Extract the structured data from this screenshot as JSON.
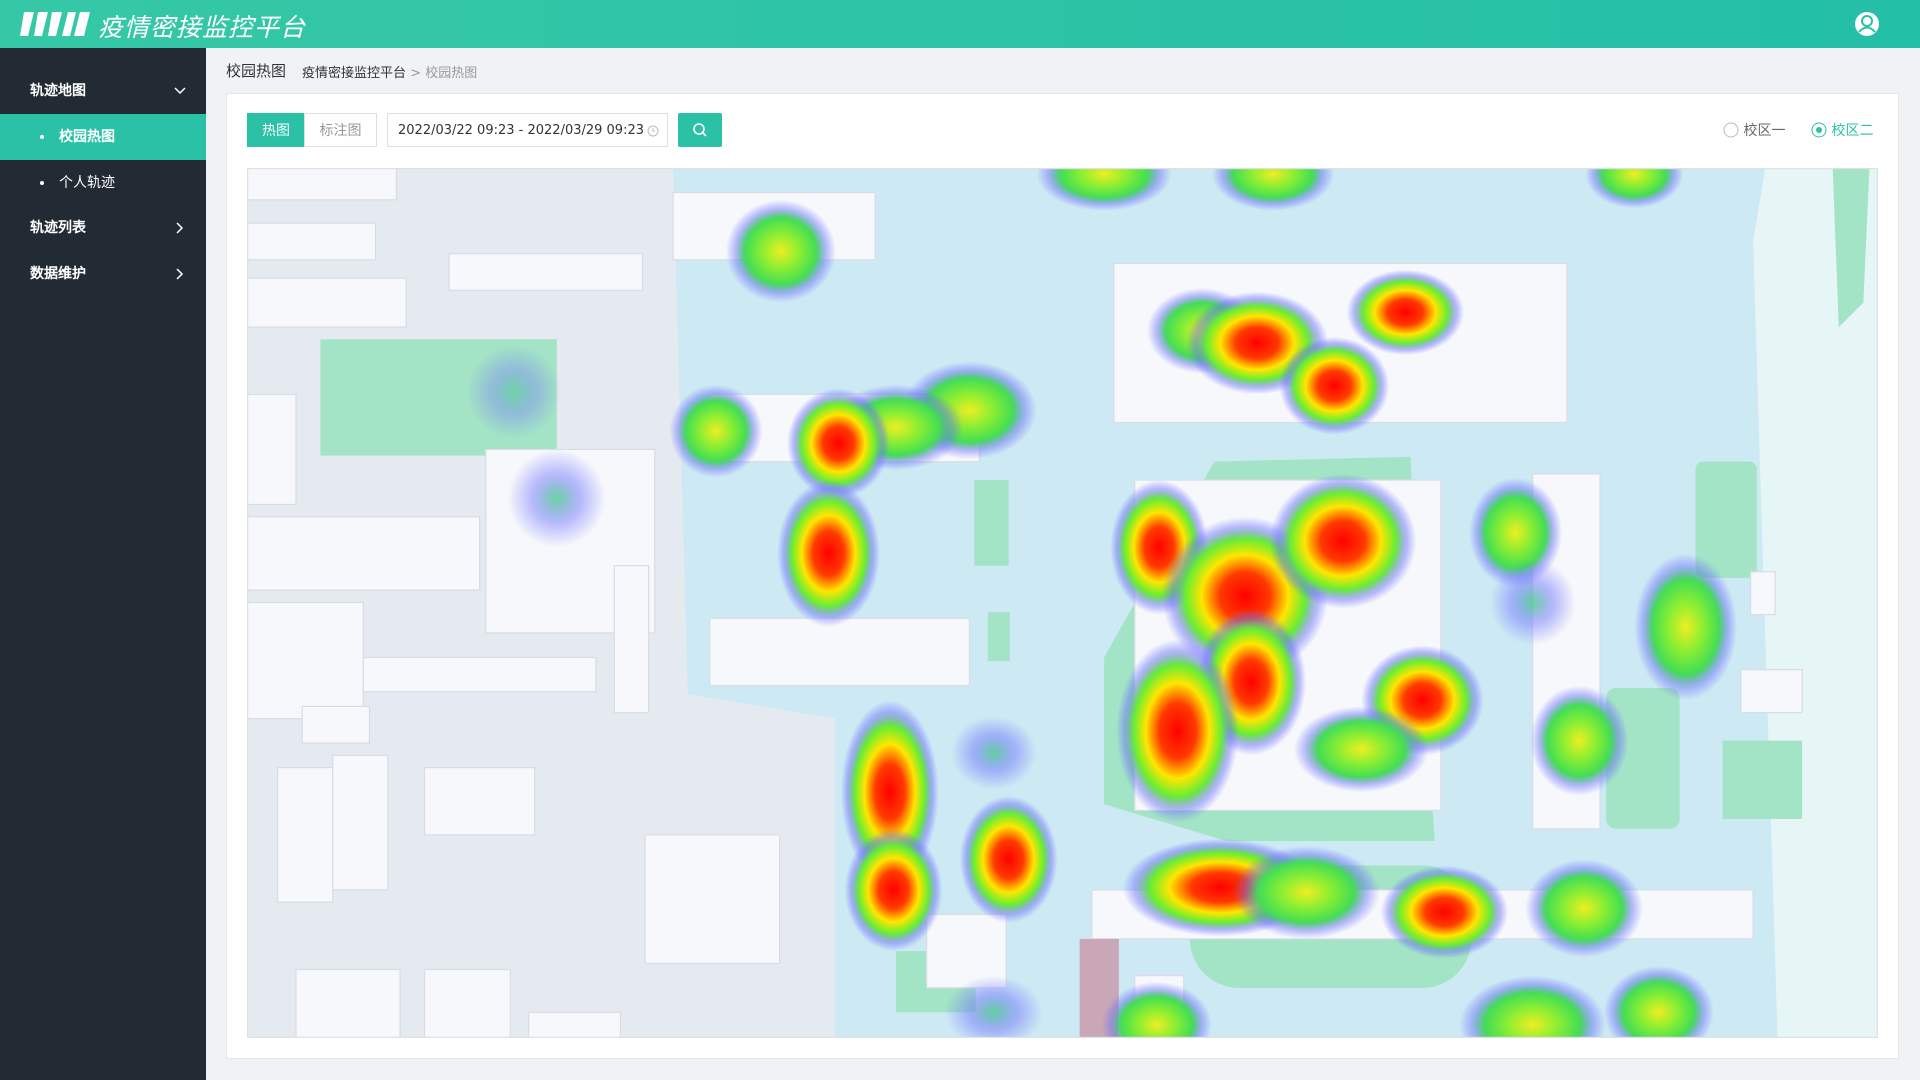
{
  "header": {
    "title": "疫情密接监控平台"
  },
  "sidebar": {
    "menu": [
      {
        "label": "轨迹地图",
        "children": [
          "校园热图",
          "个人轨迹"
        ]
      },
      {
        "label": "轨迹列表"
      },
      {
        "label": "数据维护"
      }
    ]
  },
  "breadcrumb": {
    "page": "校园热图",
    "root": "疫情密接监控平台",
    "separator": ">",
    "current": "校园热图"
  },
  "toolbar": {
    "tabs": [
      "热图",
      "标注图"
    ],
    "date_range": "2022/03/22 09:23 - 2022/03/29 09:23",
    "campuses": [
      "校区一",
      "校区二"
    ]
  }
}
